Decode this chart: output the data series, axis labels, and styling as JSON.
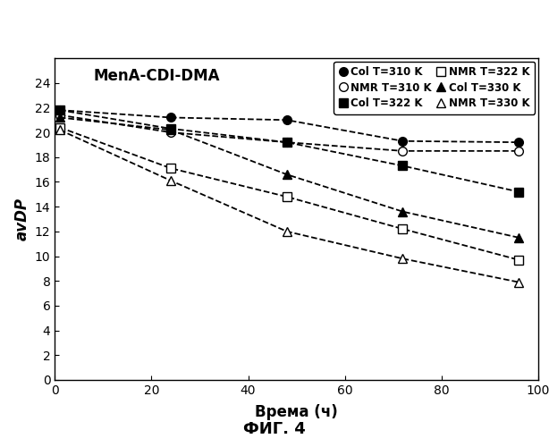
{
  "title": "MenA-CDI-DMA",
  "xlabel": "Врема (ч)",
  "ylabel": "avDP",
  "footer": "ФИГ. 4",
  "xlim": [
    0,
    100
  ],
  "ylim": [
    0,
    26
  ],
  "yticks": [
    0,
    2,
    4,
    6,
    8,
    10,
    12,
    14,
    16,
    18,
    20,
    22,
    24
  ],
  "xticks": [
    0,
    20,
    40,
    60,
    80,
    100
  ],
  "series": [
    {
      "label": "Col T=310 K",
      "marker": "o",
      "filled": true,
      "x": [
        1,
        24,
        48,
        72,
        96
      ],
      "y": [
        21.8,
        21.2,
        21.0,
        19.3,
        19.2
      ]
    },
    {
      "label": "NMR T=310 K",
      "marker": "o",
      "filled": false,
      "x": [
        1,
        24,
        48,
        72,
        96
      ],
      "y": [
        21.4,
        20.0,
        19.2,
        18.5,
        18.5
      ]
    },
    {
      "label": "Col T=322 K",
      "marker": "s",
      "filled": true,
      "x": [
        1,
        24,
        48,
        72,
        96
      ],
      "y": [
        21.8,
        20.3,
        19.2,
        17.3,
        15.2
      ]
    },
    {
      "label": "NMR T=322 K",
      "marker": "s",
      "filled": false,
      "x": [
        1,
        24,
        48,
        72,
        96
      ],
      "y": [
        20.4,
        17.1,
        14.8,
        12.2,
        9.7
      ]
    },
    {
      "label": "Col T=330 K",
      "marker": "^",
      "filled": true,
      "x": [
        1,
        24,
        48,
        72,
        96
      ],
      "y": [
        21.2,
        20.2,
        16.6,
        13.6,
        11.5
      ]
    },
    {
      "label": "NMR T=330 K",
      "marker": "^",
      "filled": false,
      "x": [
        1,
        24,
        48,
        72,
        96
      ],
      "y": [
        20.2,
        16.1,
        12.0,
        9.8,
        7.9
      ]
    }
  ],
  "color": "black",
  "background": "white",
  "title_fontsize": 12,
  "label_fontsize": 12,
  "tick_fontsize": 10,
  "legend_fontsize": 8.5,
  "marker_size": 7,
  "linewidth": 1.3
}
